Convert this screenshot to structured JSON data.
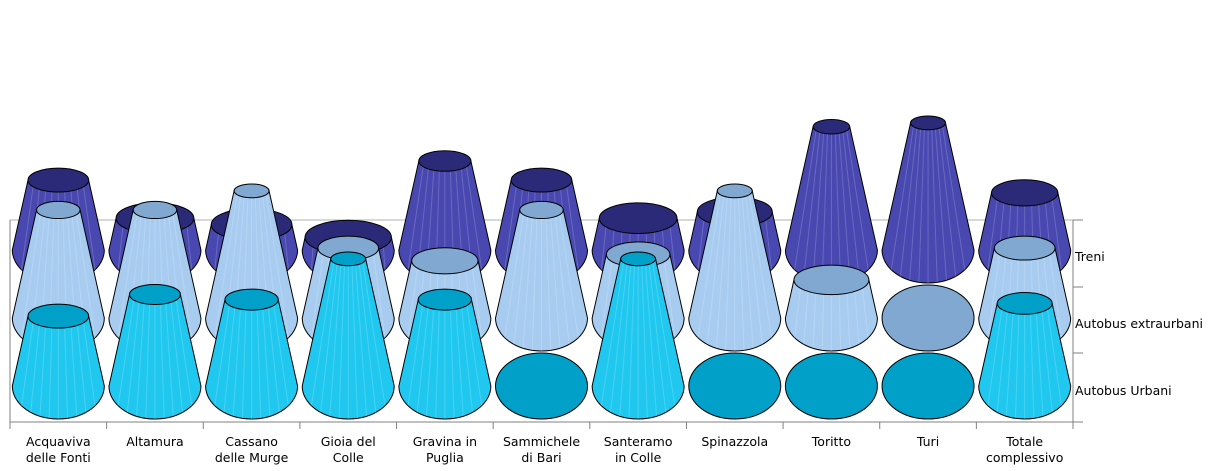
{
  "chart_data": {
    "type": "3d-cone",
    "categories": [
      [
        "Acquaviva",
        "delle Fonti"
      ],
      [
        "Altamura"
      ],
      [
        "Cassano",
        "delle Murge"
      ],
      [
        "Gioia del",
        "Colle"
      ],
      [
        "Gravina in",
        "Puglia"
      ],
      [
        "Sammichele",
        "di Bari"
      ],
      [
        "Santeramo",
        "in Colle"
      ],
      [
        "Spinazzola"
      ],
      [
        "Toritto"
      ],
      [
        "Turi"
      ],
      [
        "Totale",
        "complessivo"
      ]
    ],
    "series": [
      {
        "name": "Autobus Urbani",
        "values": [
          0.55,
          0.72,
          0.68,
          1.0,
          0.68,
          0.0,
          1.0,
          0.0,
          0.0,
          0.0,
          0.65
        ],
        "color_top": "#00A0C8",
        "color_side": "#20C8F0"
      },
      {
        "name": "Autobus extraurbani",
        "values": [
          0.85,
          0.85,
          1.0,
          0.55,
          0.45,
          0.85,
          0.5,
          1.0,
          0.3,
          0.0,
          0.55
        ],
        "color_top": "#80A8D0",
        "color_side": "#A8CCF0"
      },
      {
        "name": "Treni",
        "values": [
          0.55,
          0.25,
          0.2,
          0.1,
          0.7,
          0.55,
          0.25,
          0.3,
          0.97,
          1.0,
          0.45
        ],
        "color_top": "#2A2A78",
        "color_side": "#4848B0"
      }
    ],
    "legend_position": "right",
    "grid": false
  }
}
